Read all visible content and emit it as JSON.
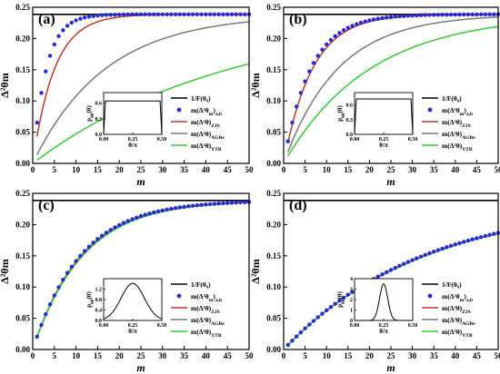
{
  "figure": {
    "legend_entries": [
      {
        "label": "1/F(θ₀)",
        "color": "#000000",
        "marker": "line"
      },
      {
        "label": "m(Δ²θ_{m})_{a,b}",
        "color": "#2a2ad4",
        "marker": "dot"
      },
      {
        "label": "m(Δ²θ)_{ZJS}",
        "color": "#c0392b",
        "marker": "line"
      },
      {
        "label": "m(Δ²θ)_{AGBe}",
        "color": "#7a7a7a",
        "marker": "line"
      },
      {
        "label": "m(Δ²θ)_{YTB}",
        "color": "#33cc33",
        "marker": "line"
      }
    ]
  },
  "chart_data": [
    {
      "panel": "(a)",
      "type": "line",
      "xlabel": "m",
      "ylabel": "Δ²θm",
      "xlim": [
        0,
        50
      ],
      "ylim": [
        0,
        0.25
      ],
      "xticks": [
        0,
        5,
        10,
        15,
        20,
        25,
        30,
        35,
        40,
        45,
        50
      ],
      "yticks": [
        "0.00",
        "0.05",
        "0.10",
        "0.15",
        "0.20",
        "0.25"
      ],
      "bound": 0.2387,
      "series": [
        {
          "key": "dots",
          "A": 0.2387,
          "k": 0.32
        },
        {
          "key": "zjs",
          "A": 0.2387,
          "k": 0.2
        },
        {
          "key": "agbe",
          "A": 0.2387,
          "k": 0.06
        },
        {
          "key": "ytb",
          "A": 0.2387,
          "k": 0.022
        }
      ],
      "inset": {
        "ylabel": "p_{θ0}(θ)",
        "xlabel": "θ/π",
        "xticks": [
          "0.00",
          "0.25",
          "0.50"
        ],
        "yticks": [
          "0.0",
          "0.3",
          "0.6"
        ],
        "ymax": 0.8,
        "shape": "flat",
        "height": 0.64
      }
    },
    {
      "panel": "(b)",
      "type": "line",
      "xlabel": "m",
      "ylabel": "Δ²θm",
      "xlim": [
        0,
        50
      ],
      "ylim": [
        0,
        0.25
      ],
      "xticks": [
        0,
        5,
        10,
        15,
        20,
        25,
        30,
        35,
        40,
        45,
        50
      ],
      "yticks": [
        "0.00",
        "0.05",
        "0.10",
        "0.15",
        "0.20",
        "0.25"
      ],
      "bound": 0.2387,
      "series": [
        {
          "key": "dots",
          "A": 0.2387,
          "k": 0.16
        },
        {
          "key": "zjs",
          "A": 0.2387,
          "k": 0.15
        },
        {
          "key": "agbe",
          "A": 0.2387,
          "k": 0.08
        },
        {
          "key": "ytb",
          "A": 0.2387,
          "k": 0.05
        }
      ],
      "inset": {
        "ylabel": "p_{θ0}(θ)",
        "xlabel": "θ/π",
        "xticks": [
          "0.00",
          "0.25",
          "0.50"
        ],
        "yticks": [
          "0.0",
          "0.3",
          "0.6"
        ],
        "ymax": 0.85,
        "shape": "flat",
        "height": 0.72
      }
    },
    {
      "panel": "(c)",
      "type": "line",
      "xlabel": "m",
      "ylabel": "Δ²θm",
      "xlim": [
        0,
        50
      ],
      "ylim": [
        0,
        0.25
      ],
      "xticks": [
        0,
        5,
        10,
        15,
        20,
        25,
        30,
        35,
        40,
        45,
        50
      ],
      "yticks": [
        "0.00",
        "0.05",
        "0.10",
        "0.15",
        "0.20",
        "0.25"
      ],
      "bound": 0.2387,
      "series": [
        {
          "key": "dots",
          "A": 0.2387,
          "k": 0.09
        },
        {
          "key": "zjs",
          "A": 0.2387,
          "k": 0.089
        },
        {
          "key": "agbe",
          "A": 0.2387,
          "k": 0.088
        },
        {
          "key": "ytb",
          "A": 0.2387,
          "k": 0.086
        }
      ],
      "inset": {
        "ylabel": "p_{θ0}(θ)",
        "xlabel": "θ/π",
        "xticks": [
          "0.00",
          "0.25",
          "0.50"
        ],
        "yticks": [
          "0.0",
          "0.4",
          "0.8",
          "1.2"
        ],
        "ymax": 1.6,
        "shape": "bell",
        "height": 1.42,
        "width": 0.1
      }
    },
    {
      "panel": "(d)",
      "type": "line",
      "xlabel": "m",
      "ylabel": "Δ²θm",
      "xlim": [
        0,
        50
      ],
      "ylim": [
        0,
        0.25
      ],
      "xticks": [
        0,
        5,
        10,
        15,
        20,
        25,
        30,
        35,
        40,
        45,
        50
      ],
      "yticks": [
        "0.00",
        "0.05",
        "0.10",
        "0.15",
        "0.20",
        "0.25"
      ],
      "bound": 0.2387,
      "series": [
        {
          "key": "dots",
          "A": 0.2387,
          "k": 0.0305
        },
        {
          "key": "zjs",
          "A": 0.2387,
          "k": 0.0303
        },
        {
          "key": "agbe",
          "A": 0.2387,
          "k": 0.0302
        },
        {
          "key": "ytb",
          "A": 0.2387,
          "k": 0.03
        }
      ],
      "inset": {
        "ylabel": "p_{θ0}(θ)",
        "xlabel": "θ/π",
        "xticks": [
          "0.00",
          "0.25",
          "0.50"
        ],
        "yticks": [
          "0",
          "1",
          "2",
          "3",
          "4"
        ],
        "ymax": 4,
        "shape": "bell",
        "height": 3.5,
        "width": 0.035
      }
    }
  ]
}
